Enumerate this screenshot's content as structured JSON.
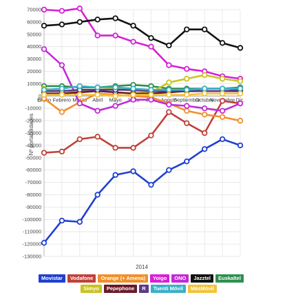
{
  "chart_data": {
    "type": "line",
    "xlabel": "2014",
    "ylabel": "Nº portabilidades",
    "categories": [
      "Enero",
      "Febrero",
      "Marzo",
      "Abril",
      "Mayo",
      "Junio",
      "Julio",
      "Agosto",
      "Septiembre",
      "Octubre",
      "Noviembre",
      "Dic."
    ],
    "ylim": [
      -130000,
      70000
    ],
    "yticks": [
      70000,
      60000,
      50000,
      40000,
      30000,
      20000,
      10000,
      0,
      -10000,
      -20000,
      -30000,
      -40000,
      -50000,
      -60000,
      -70000,
      -80000,
      -90000,
      -100000,
      -110000,
      -120000,
      -130000
    ],
    "grid": true,
    "legend_position": "bottom",
    "series": [
      {
        "name": "Movistar",
        "color": "#1f3fd1",
        "values": [
          -119000,
          -101000,
          -102000,
          -80000,
          -64000,
          -61000,
          -72000,
          -60000,
          -53000,
          -43000,
          -35000,
          -40000
        ]
      },
      {
        "name": "Vodafone",
        "color": "#c0413a",
        "values": [
          -46000,
          -45000,
          -35000,
          -33000,
          -42000,
          -42000,
          -32000,
          -13000,
          -22000,
          -30000,
          -4000,
          -6000
        ]
      },
      {
        "name": "Orange (+ Amena)",
        "color": "#f0902a",
        "values": [
          -2000,
          -13000,
          -5000,
          2000,
          1000,
          0,
          -1000,
          -6000,
          -12000,
          -15000,
          -17000,
          -20000
        ]
      },
      {
        "name": "Yoigo",
        "color": "#d81fd6",
        "values": [
          70000,
          69000,
          71000,
          49000,
          49000,
          44000,
          40000,
          25000,
          22000,
          20000,
          16000,
          14000
        ]
      },
      {
        "name": "ONO",
        "color": "#c42ad6",
        "values": [
          38000,
          25000,
          -6000,
          -12000,
          -8000,
          -3000,
          -3000,
          -7000,
          -8000,
          -10000,
          -12000,
          -6000
        ]
      },
      {
        "name": "Jazztel",
        "color": "#111111",
        "values": [
          57000,
          58000,
          60000,
          62000,
          63000,
          57000,
          47000,
          41000,
          54000,
          54000,
          43000,
          39000
        ]
      },
      {
        "name": "Euskaltel",
        "color": "#2e8f4f",
        "values": [
          8000,
          8000,
          7000,
          7000,
          8000,
          9000,
          8000,
          6000,
          6000,
          6000,
          6000,
          7000
        ]
      },
      {
        "name": "Simyo",
        "color": "#c9c41f",
        "values": [
          6000,
          4000,
          4000,
          5000,
          6000,
          4000,
          3000,
          11000,
          14000,
          17000,
          14000,
          12000
        ]
      },
      {
        "name": "Pepephone",
        "color": "#6b1a2a",
        "values": [
          2000,
          2000,
          3000,
          4000,
          3000,
          2000,
          2000,
          3000,
          4000,
          4000,
          4000,
          4000
        ]
      },
      {
        "name": "R",
        "color": "#5b3a8c",
        "values": [
          4000,
          4000,
          5000,
          5000,
          5000,
          5000,
          4000,
          4000,
          5000,
          4000,
          4000,
          5000
        ]
      },
      {
        "name": "Tuenti Móvil",
        "color": "#3ab0c8",
        "values": [
          5000,
          6000,
          8000,
          7000,
          7000,
          6000,
          5000,
          5000,
          5000,
          6000,
          6000,
          6000
        ]
      },
      {
        "name": "MásMóvil",
        "color": "#f2c43a",
        "values": [
          1000,
          1000,
          1000,
          1000,
          0,
          1000,
          1000,
          1000,
          1000,
          2000,
          2000,
          2000
        ]
      }
    ]
  }
}
